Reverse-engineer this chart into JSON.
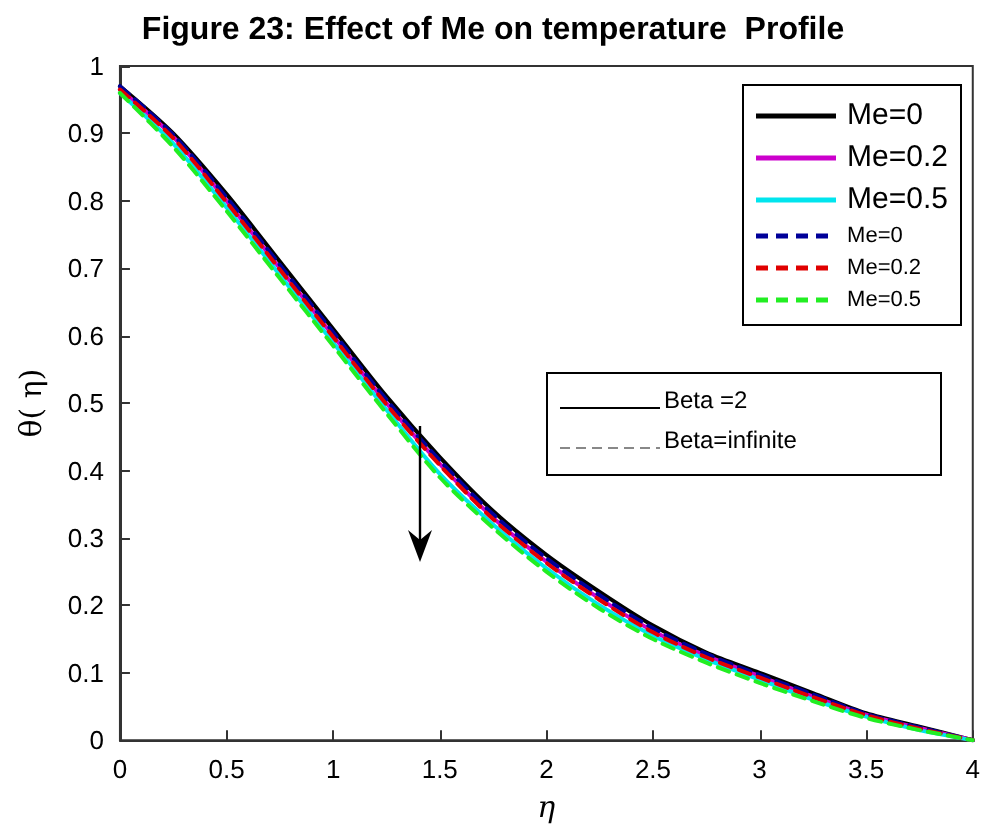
{
  "chart_data": {
    "type": "line",
    "title": "Figure 23: Effect of Me on temperature  Profile",
    "xlabel": "η",
    "ylabel": "θ( η)",
    "x": [
      0,
      0.25,
      0.5,
      0.75,
      1,
      1.25,
      1.5,
      1.75,
      2,
      2.25,
      2.5,
      2.75,
      3,
      3.25,
      3.5,
      3.75,
      4
    ],
    "series": [
      {
        "name": "Me=0",
        "color": "#000000",
        "line_style": "solid",
        "values": [
          0.97,
          0.9,
          0.81,
          0.71,
          0.61,
          0.51,
          0.42,
          0.34,
          0.275,
          0.22,
          0.17,
          0.13,
          0.1,
          0.07,
          0.04,
          0.02,
          0
        ]
      },
      {
        "name": "Me=0.2",
        "color": "#cc00cc",
        "line_style": "solid",
        "values": [
          0.965,
          0.895,
          0.8,
          0.7,
          0.6,
          0.5,
          0.41,
          0.33,
          0.265,
          0.21,
          0.162,
          0.125,
          0.095,
          0.065,
          0.038,
          0.018,
          0
        ]
      },
      {
        "name": "Me=0.5",
        "color": "#00e5ee",
        "line_style": "solid",
        "values": [
          0.96,
          0.885,
          0.79,
          0.69,
          0.59,
          0.49,
          0.395,
          0.32,
          0.255,
          0.2,
          0.155,
          0.12,
          0.09,
          0.06,
          0.035,
          0.015,
          0
        ]
      },
      {
        "name": "Me=0",
        "color": "#000099",
        "line_style": "dashed",
        "values": [
          0.97,
          0.898,
          0.805,
          0.705,
          0.605,
          0.505,
          0.415,
          0.335,
          0.27,
          0.215,
          0.166,
          0.128,
          0.097,
          0.068,
          0.039,
          0.019,
          0
        ]
      },
      {
        "name": "Me=0.2",
        "color": "#e00000",
        "line_style": "dashed",
        "values": [
          0.965,
          0.893,
          0.798,
          0.698,
          0.598,
          0.498,
          0.408,
          0.328,
          0.263,
          0.208,
          0.16,
          0.123,
          0.093,
          0.064,
          0.037,
          0.017,
          0
        ]
      },
      {
        "name": "Me=0.5",
        "color": "#22ee22",
        "line_style": "dashed",
        "values": [
          0.96,
          0.88,
          0.785,
          0.685,
          0.585,
          0.485,
          0.39,
          0.315,
          0.25,
          0.195,
          0.15,
          0.115,
          0.085,
          0.058,
          0.033,
          0.015,
          0
        ]
      }
    ],
    "xlim": [
      0,
      4
    ],
    "xticks": [
      0,
      0.5,
      1,
      1.5,
      2,
      2.5,
      3,
      3.5,
      4
    ],
    "ylim": [
      0,
      1
    ],
    "yticks": [
      0,
      0.1,
      0.2,
      0.3,
      0.4,
      0.5,
      0.6,
      0.7,
      0.8,
      0.9,
      1
    ],
    "grid": false,
    "legend": "top right",
    "marker": "none",
    "annotations": [
      "Beta =2",
      "Beta=infinite"
    ]
  }
}
